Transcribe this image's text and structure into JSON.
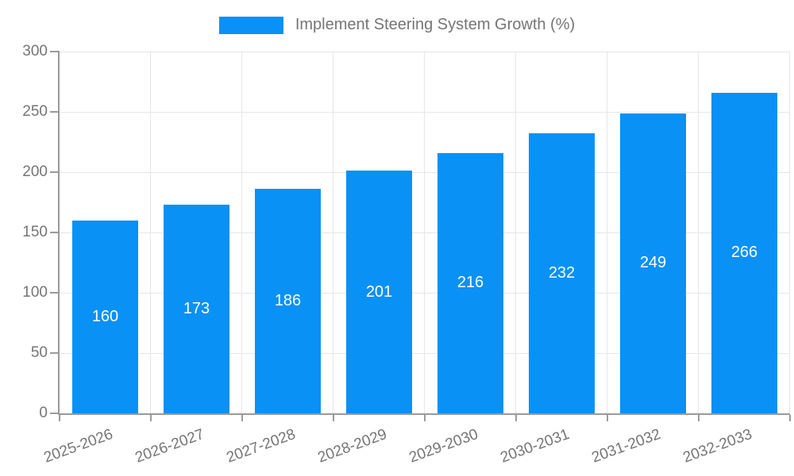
{
  "legend": {
    "label": "Implement Steering System Growth (%)"
  },
  "colors": {
    "bar": "#0991f5",
    "axis": "#9a9a9a",
    "grid": "#e6e6e6",
    "tick_text": "#757575",
    "bar_value_text": "#ffffff",
    "background": "#ffffff"
  },
  "chart_data": {
    "type": "bar",
    "title": "Implement Steering System Growth (%)",
    "categories": [
      "2025-2026",
      "2026-2027",
      "2027-2028",
      "2028-2029",
      "2029-2030",
      "2030-2031",
      "2031-2032",
      "2032-2033"
    ],
    "values": [
      160,
      173,
      186,
      201,
      216,
      232,
      249,
      266
    ],
    "xlabel": "",
    "ylabel": "",
    "ylim": [
      0,
      300
    ],
    "yticks": [
      0,
      50,
      100,
      150,
      200,
      250,
      300
    ],
    "grid": true,
    "legend_position": "top-center",
    "bar_value_labels": true,
    "x_tick_label_rotation_deg": -20
  }
}
